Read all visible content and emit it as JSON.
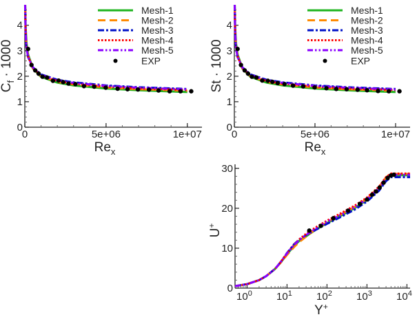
{
  "styles": {
    "Mesh-1": {
      "color": "#1fb41f",
      "dash": "solid"
    },
    "Mesh-2": {
      "color": "#ff8a00",
      "dash": "dashed"
    },
    "Mesh-3": {
      "color": "#0010c8",
      "dash": "dash-dot"
    },
    "Mesh-4": {
      "color": "#ff0000",
      "dash": "dotted"
    },
    "Mesh-5": {
      "color": "#8a00ff",
      "dash": "dash-dot-dot"
    },
    "EXP": {
      "color": "#000000",
      "dash": "marker"
    }
  },
  "chart_data": [
    {
      "type": "line",
      "ylabel": {
        "main": "C",
        "sub": "f",
        "rest": " · 1000"
      },
      "xlabel": {
        "main": "Re",
        "sub": "x"
      },
      "xlim": [
        0,
        10900000
      ],
      "ylim": [
        0,
        4.8
      ],
      "xticks": [
        {
          "v": 0,
          "label": "0"
        },
        {
          "v": 5000000,
          "label": "5e+06"
        },
        {
          "v": 10000000,
          "label": "1e+07"
        }
      ],
      "yticks": [
        {
          "v": 0,
          "label": "0"
        },
        {
          "v": 1,
          "label": "1"
        },
        {
          "v": 2,
          "label": "2"
        },
        {
          "v": 3,
          "label": "3"
        },
        {
          "v": 4,
          "label": "4"
        }
      ],
      "legend": "top-right",
      "x": [
        20000,
        50000,
        100000,
        200000,
        500000,
        1000000,
        2000000,
        3000000,
        5000000,
        7000000,
        10000000
      ],
      "series": [
        {
          "name": "Mesh-1",
          "values": [
            4.8,
            3.9,
            3.3,
            2.85,
            2.3,
            1.98,
            1.75,
            1.64,
            1.52,
            1.45,
            1.38
          ]
        },
        {
          "name": "Mesh-2",
          "values": [
            4.8,
            3.8,
            3.2,
            2.8,
            2.3,
            2.0,
            1.78,
            1.68,
            1.56,
            1.49,
            1.43
          ]
        },
        {
          "name": "Mesh-3",
          "values": [
            4.8,
            3.7,
            3.1,
            2.75,
            2.35,
            2.07,
            1.86,
            1.76,
            1.64,
            1.57,
            1.5
          ]
        },
        {
          "name": "Mesh-4",
          "values": [
            4.8,
            3.75,
            3.15,
            2.78,
            2.32,
            2.03,
            1.81,
            1.71,
            1.59,
            1.52,
            1.46
          ]
        },
        {
          "name": "Mesh-5",
          "values": [
            4.8,
            3.72,
            3.12,
            2.76,
            2.34,
            2.05,
            1.84,
            1.74,
            1.62,
            1.55,
            1.48
          ]
        }
      ],
      "exp": {
        "name": "EXP",
        "x": [
          200000,
          410000,
          640000,
          850000,
          1090000,
          1370000,
          1730000,
          2080000,
          2360000,
          2690000,
          3110000,
          3640000,
          4270000,
          4980000,
          5710000,
          6320000,
          6960000,
          7640000,
          8230000,
          8910000,
          9580000,
          10240000
        ],
        "y": [
          3.07,
          2.44,
          2.23,
          2.1,
          1.98,
          1.95,
          1.82,
          1.83,
          1.77,
          1.71,
          1.69,
          1.61,
          1.59,
          1.55,
          1.51,
          1.49,
          1.48,
          1.47,
          1.44,
          1.41,
          1.41,
          1.41
        ]
      }
    },
    {
      "type": "line",
      "ylabel": {
        "main": "St",
        "sub": "",
        "rest": " · 1000"
      },
      "xlabel": {
        "main": "Re",
        "sub": "x"
      },
      "xlim": [
        0,
        10900000
      ],
      "ylim": [
        0,
        4.8
      ],
      "xticks": [
        {
          "v": 0,
          "label": "0"
        },
        {
          "v": 5000000,
          "label": "5e+06"
        },
        {
          "v": 10000000,
          "label": "1e+07"
        }
      ],
      "yticks": [
        {
          "v": 0,
          "label": "0"
        },
        {
          "v": 1,
          "label": "1"
        },
        {
          "v": 2,
          "label": "2"
        },
        {
          "v": 3,
          "label": "3"
        },
        {
          "v": 4,
          "label": "4"
        }
      ],
      "legend": "top-right",
      "x": [
        20000,
        50000,
        100000,
        200000,
        500000,
        1000000,
        2000000,
        3000000,
        5000000,
        7000000,
        10000000
      ],
      "series": [
        {
          "name": "Mesh-1",
          "values": [
            4.8,
            3.9,
            3.3,
            2.85,
            2.3,
            1.98,
            1.75,
            1.64,
            1.52,
            1.45,
            1.38
          ]
        },
        {
          "name": "Mesh-2",
          "values": [
            4.8,
            3.8,
            3.2,
            2.8,
            2.3,
            2.0,
            1.78,
            1.68,
            1.56,
            1.49,
            1.43
          ]
        },
        {
          "name": "Mesh-3",
          "values": [
            4.8,
            3.7,
            3.1,
            2.75,
            2.35,
            2.07,
            1.86,
            1.76,
            1.64,
            1.57,
            1.5
          ]
        },
        {
          "name": "Mesh-4",
          "values": [
            4.8,
            3.75,
            3.15,
            2.78,
            2.32,
            2.03,
            1.81,
            1.71,
            1.59,
            1.52,
            1.46
          ]
        },
        {
          "name": "Mesh-5",
          "values": [
            4.8,
            3.72,
            3.12,
            2.76,
            2.34,
            2.05,
            1.84,
            1.74,
            1.62,
            1.55,
            1.48
          ]
        }
      ],
      "exp": {
        "name": "EXP",
        "x": [
          200000,
          410000,
          640000,
          850000,
          1090000,
          1370000,
          1730000,
          2080000,
          2360000,
          2690000,
          3110000,
          3640000,
          4270000,
          4980000,
          5710000,
          6320000,
          6960000,
          7640000,
          8230000,
          8910000,
          9580000,
          10240000
        ],
        "y": [
          3.07,
          2.44,
          2.23,
          2.1,
          1.98,
          1.95,
          1.83,
          1.82,
          1.78,
          1.73,
          1.69,
          1.63,
          1.6,
          1.56,
          1.53,
          1.5,
          1.49,
          1.47,
          1.45,
          1.42,
          1.41,
          1.41
        ]
      }
    },
    {
      "type": "line",
      "ylabel": {
        "main": "U",
        "sup": "+"
      },
      "xlabel": {
        "main": "Y",
        "sup": "+"
      },
      "xscale": "log",
      "xlim": [
        0.5,
        12000
      ],
      "ylim": [
        0,
        31
      ],
      "xticks": [
        {
          "v": 1,
          "base": "10",
          "exp": "0"
        },
        {
          "v": 10,
          "base": "10",
          "exp": "1"
        },
        {
          "v": 100,
          "base": "10",
          "exp": "2"
        },
        {
          "v": 1000,
          "base": "10",
          "exp": "3"
        },
        {
          "v": 10000,
          "base": "10",
          "exp": "4"
        }
      ],
      "yticks": [
        {
          "v": 0,
          "label": "0"
        },
        {
          "v": 10,
          "label": "10"
        },
        {
          "v": 20,
          "label": "20"
        },
        {
          "v": 30,
          "label": "30"
        }
      ],
      "x": [
        0.5,
        1,
        2,
        3,
        5,
        7,
        10,
        15,
        20,
        30,
        50,
        100,
        200,
        500,
        1000,
        2000,
        3000,
        4000,
        5000,
        12000
      ],
      "series": [
        {
          "name": "Mesh-1",
          "values": [
            0.5,
            1.0,
            2.0,
            3.0,
            4.8,
            6.5,
            8.5,
            10.6,
            11.8,
            13.0,
            14.5,
            16.3,
            17.9,
            20.1,
            22.1,
            24.9,
            27.3,
            28.3,
            28.3,
            28.3
          ]
        },
        {
          "name": "Mesh-2",
          "values": [
            0.5,
            1.0,
            2.0,
            3.0,
            4.8,
            6.4,
            8.3,
            10.3,
            11.5,
            12.9,
            14.6,
            16.5,
            18.2,
            20.4,
            22.4,
            25.3,
            27.8,
            28.6,
            28.6,
            28.6
          ]
        },
        {
          "name": "Mesh-3",
          "values": [
            0.5,
            1.0,
            2.0,
            3.0,
            4.8,
            6.6,
            8.8,
            11.0,
            12.1,
            13.3,
            14.5,
            16.1,
            17.6,
            19.7,
            21.7,
            24.4,
            26.8,
            27.8,
            27.8,
            27.8
          ]
        },
        {
          "name": "Mesh-4",
          "values": [
            0.5,
            1.0,
            2.0,
            3.0,
            4.8,
            6.6,
            8.7,
            10.9,
            12.2,
            13.6,
            15.1,
            16.9,
            18.5,
            20.7,
            22.7,
            25.4,
            27.8,
            28.7,
            28.7,
            28.7
          ]
        },
        {
          "name": "Mesh-5",
          "values": [
            0.5,
            1.0,
            2.0,
            3.0,
            4.8,
            6.6,
            8.7,
            10.8,
            12.0,
            13.3,
            14.8,
            16.6,
            18.1,
            20.3,
            22.3,
            25.0,
            27.5,
            28.4,
            28.4,
            28.4
          ]
        }
      ],
      "exp": {
        "name": "EXP",
        "x": [
          36,
          70,
          144,
          335,
          665,
          1000,
          1350,
          1680,
          2075,
          2600,
          3300,
          3980,
          4700
        ],
        "y": [
          14.4,
          15.6,
          17.5,
          19.4,
          21.1,
          22.2,
          23.4,
          24.2,
          25.2,
          26.4,
          27.6,
          28.2,
          28.4
        ]
      }
    }
  ]
}
